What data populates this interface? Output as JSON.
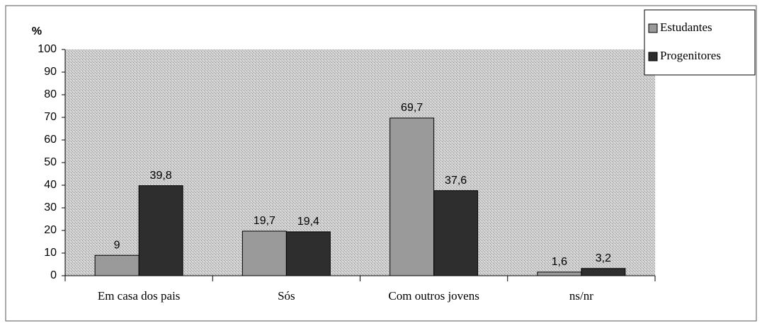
{
  "chart_data": {
    "type": "bar",
    "y_axis_label": "%",
    "categories": [
      "Em casa dos pais",
      "Sós",
      "Com outros jovens",
      "ns/nr"
    ],
    "series": [
      {
        "name": "Estudantes",
        "color": "#9a9a9a",
        "values": [
          9,
          19.7,
          69.7,
          1.6
        ],
        "value_labels": [
          "9",
          "19,7",
          "69,7",
          "1,6"
        ]
      },
      {
        "name": "Progenitores",
        "color": "#2e2e2e",
        "values": [
          39.8,
          19.4,
          37.6,
          3.2
        ],
        "value_labels": [
          "39,8",
          "19,4",
          "37,6",
          "3,2"
        ]
      }
    ],
    "ylim": [
      0,
      100
    ],
    "yticks": [
      0,
      10,
      20,
      30,
      40,
      50,
      60,
      70,
      80,
      90,
      100
    ],
    "legend": "top-right"
  }
}
